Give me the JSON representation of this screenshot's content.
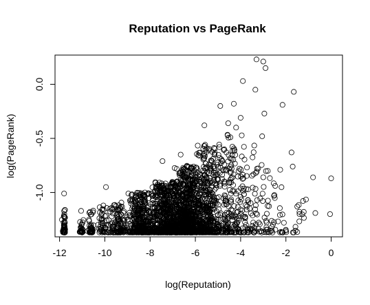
{
  "chart_data": {
    "type": "scatter",
    "title": "Reputation vs PageRank",
    "xlabel": "log(Reputation)",
    "ylabel": "log(PageRank)",
    "xlim": [
      -12.2,
      0.5
    ],
    "ylim": [
      -1.41,
      0.27
    ],
    "xticks": [
      -12,
      -10,
      -8,
      -6,
      -4,
      -2,
      0
    ],
    "yticks": [
      -1.0,
      -0.5,
      0.0
    ],
    "xtick_labels": [
      "-12",
      "-10",
      "-8",
      "-6",
      "-4",
      "-2",
      "0"
    ],
    "ytick_labels": [
      "-1.0",
      "-0.5",
      "0.0"
    ],
    "grid": false,
    "marker": "open-circle",
    "highlighted_points": [
      {
        "x": -3.3,
        "y": 0.23
      },
      {
        "x": -3.0,
        "y": 0.21
      },
      {
        "x": -2.9,
        "y": 0.15
      },
      {
        "x": -3.9,
        "y": 0.03
      },
      {
        "x": -3.35,
        "y": -0.05
      },
      {
        "x": -1.65,
        "y": -0.07
      },
      {
        "x": -4.3,
        "y": -0.18
      },
      {
        "x": -4.9,
        "y": -0.2
      },
      {
        "x": -2.15,
        "y": -0.19
      },
      {
        "x": -2.95,
        "y": -0.27
      },
      {
        "x": -4.0,
        "y": -0.31
      },
      {
        "x": -4.55,
        "y": -0.36
      },
      {
        "x": -5.6,
        "y": -0.38
      },
      {
        "x": -4.2,
        "y": -0.4
      },
      {
        "x": -3.05,
        "y": -0.48
      },
      {
        "x": -1.75,
        "y": -0.63
      },
      {
        "x": -0.8,
        "y": -0.86
      },
      {
        "x": 0.0,
        "y": -0.87
      },
      {
        "x": -1.7,
        "y": -0.76
      },
      {
        "x": -2.25,
        "y": -0.79
      },
      {
        "x": -11.8,
        "y": -1.01
      },
      {
        "x": -9.95,
        "y": -0.95
      },
      {
        "x": -1.5,
        "y": -1.13
      },
      {
        "x": -0.7,
        "y": -1.19
      },
      {
        "x": -0.05,
        "y": -1.2
      },
      {
        "x": -11.05,
        "y": -1.17
      },
      {
        "x": -7.45,
        "y": -0.71
      },
      {
        "x": -6.65,
        "y": -0.65
      }
    ],
    "scatter_clusters": [
      {
        "x_center": -11.8,
        "x_spread": 0.06,
        "y_min": -1.37,
        "y_max": -1.16,
        "count": 45
      },
      {
        "x_center": -11.05,
        "x_spread": 0.08,
        "y_min": -1.37,
        "y_max": -1.25,
        "count": 25
      },
      {
        "x_center": -10.6,
        "x_spread": 0.12,
        "y_min": -1.37,
        "y_max": -1.15,
        "count": 35
      },
      {
        "x_center": -10.1,
        "x_spread": 0.2,
        "y_min": -1.37,
        "y_max": -1.1,
        "count": 45
      },
      {
        "x_center": -9.4,
        "x_spread": 0.35,
        "y_min": -1.37,
        "y_max": -1.08,
        "count": 110
      },
      {
        "x_center": -8.4,
        "x_spread": 0.55,
        "y_min": -1.37,
        "y_max": -1.0,
        "count": 380
      },
      {
        "x_center": -7.2,
        "x_spread": 0.6,
        "y_min": -1.37,
        "y_max": -0.9,
        "count": 700
      },
      {
        "x_center": -6.3,
        "x_spread": 0.55,
        "y_min": -1.37,
        "y_max": -0.75,
        "count": 750
      },
      {
        "x_center": -5.4,
        "x_spread": 0.5,
        "y_min": -1.37,
        "y_max": -0.55,
        "count": 380
      },
      {
        "x_center": -4.5,
        "x_spread": 0.5,
        "y_min": -1.37,
        "y_max": -0.45,
        "count": 170
      },
      {
        "x_center": -3.6,
        "x_spread": 0.5,
        "y_min": -1.37,
        "y_max": -0.55,
        "count": 90
      },
      {
        "x_center": -2.6,
        "x_spread": 0.5,
        "y_min": -1.37,
        "y_max": -0.8,
        "count": 45
      },
      {
        "x_center": -1.6,
        "x_spread": 0.45,
        "y_min": -1.37,
        "y_max": -1.05,
        "count": 18
      }
    ]
  }
}
